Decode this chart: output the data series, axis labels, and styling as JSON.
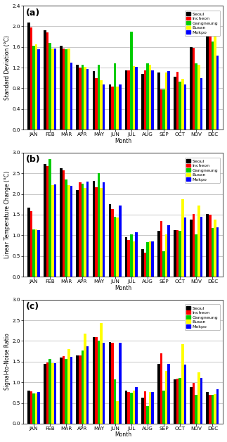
{
  "months": [
    "JAN",
    "FEB",
    "MAR",
    "APR",
    "MAY",
    "JUN",
    "JUL",
    "AUG",
    "SEP",
    "OCT",
    "NOV",
    "DEC"
  ],
  "stations": [
    "Seoul",
    "Incheon",
    "Gangneung",
    "Busan",
    "Mokpo"
  ],
  "colors": [
    "#000000",
    "#ff0000",
    "#00cc00",
    "#ffff00",
    "#0000ff"
  ],
  "bg_color": "#ffffff",
  "panel_a": {
    "title": "(a)",
    "ylabel": "Standard Deviation (°C)",
    "ylim": [
      0.0,
      2.4
    ],
    "yticks": [
      0.0,
      0.4,
      0.8,
      1.2,
      1.6,
      2.0,
      2.4
    ],
    "data": {
      "Seoul": [
        2.07,
        1.93,
        1.63,
        1.25,
        1.13,
        0.88,
        1.15,
        1.08,
        1.1,
        1.02,
        1.6,
        2.0
      ],
      "Incheon": [
        1.98,
        1.88,
        1.57,
        1.2,
        1.0,
        0.83,
        1.15,
        1.15,
        0.78,
        1.12,
        1.58,
        1.97
      ],
      "Gangneung": [
        1.62,
        1.68,
        1.55,
        1.25,
        1.25,
        1.28,
        1.9,
        1.28,
        0.78,
        0.93,
        1.28,
        1.7
      ],
      "Busan": [
        1.65,
        1.57,
        1.57,
        1.22,
        0.95,
        0.83,
        1.23,
        1.25,
        1.1,
        0.98,
        1.25,
        1.87
      ],
      "Mokpo": [
        1.55,
        1.57,
        1.3,
        1.17,
        0.88,
        0.88,
        1.22,
        1.15,
        1.13,
        0.88,
        1.0,
        1.43
      ]
    }
  },
  "panel_b": {
    "title": "(b)",
    "ylabel": "Linear Temperature Change (°C)",
    "ylim": [
      0.0,
      3.0
    ],
    "yticks": [
      0.0,
      0.5,
      1.0,
      1.5,
      2.0,
      2.5,
      3.0
    ],
    "data": {
      "Seoul": [
        1.67,
        2.72,
        2.62,
        2.1,
        2.32,
        1.75,
        0.95,
        0.67,
        1.1,
        1.12,
        1.38,
        1.52
      ],
      "Incheon": [
        1.58,
        2.68,
        2.57,
        2.28,
        2.17,
        1.63,
        0.88,
        0.58,
        1.35,
        1.13,
        1.52,
        1.5
      ],
      "Gangneung": [
        1.15,
        2.85,
        2.35,
        2.25,
        2.5,
        1.45,
        1.02,
        0.83,
        0.62,
        1.1,
        1.03,
        1.18
      ],
      "Busan": [
        1.15,
        2.22,
        2.22,
        2.15,
        2.15,
        1.43,
        0.85,
        0.85,
        1.02,
        1.87,
        1.72,
        1.38
      ],
      "Mokpo": [
        1.13,
        2.23,
        2.2,
        2.3,
        2.28,
        1.72,
        1.08,
        0.85,
        1.25,
        1.43,
        1.45,
        1.2
      ]
    }
  },
  "panel_c": {
    "title": "(c)",
    "ylabel": "Signal-to-Noise Ratio",
    "ylim": [
      0.0,
      3.0
    ],
    "yticks": [
      0.0,
      0.5,
      1.0,
      1.5,
      2.0,
      2.5,
      3.0
    ],
    "data": {
      "Seoul": [
        0.8,
        1.45,
        1.6,
        1.65,
        2.1,
        1.97,
        0.8,
        0.63,
        1.45,
        1.07,
        0.88,
        0.77
      ],
      "Incheon": [
        0.78,
        1.48,
        1.63,
        1.65,
        2.1,
        1.95,
        0.77,
        0.78,
        1.7,
        1.08,
        0.98,
        0.7
      ],
      "Gangneung": [
        0.73,
        1.57,
        1.57,
        1.77,
        2.0,
        1.07,
        0.75,
        0.43,
        0.8,
        1.1,
        0.7,
        0.7
      ],
      "Busan": [
        0.73,
        1.47,
        1.8,
        2.18,
        2.43,
        0.55,
        0.8,
        0.77,
        1.27,
        1.92,
        1.25,
        0.72
      ],
      "Mokpo": [
        0.77,
        1.47,
        1.62,
        1.88,
        1.95,
        1.95,
        0.88,
        0.77,
        1.45,
        1.43,
        1.1,
        0.83
      ]
    }
  }
}
